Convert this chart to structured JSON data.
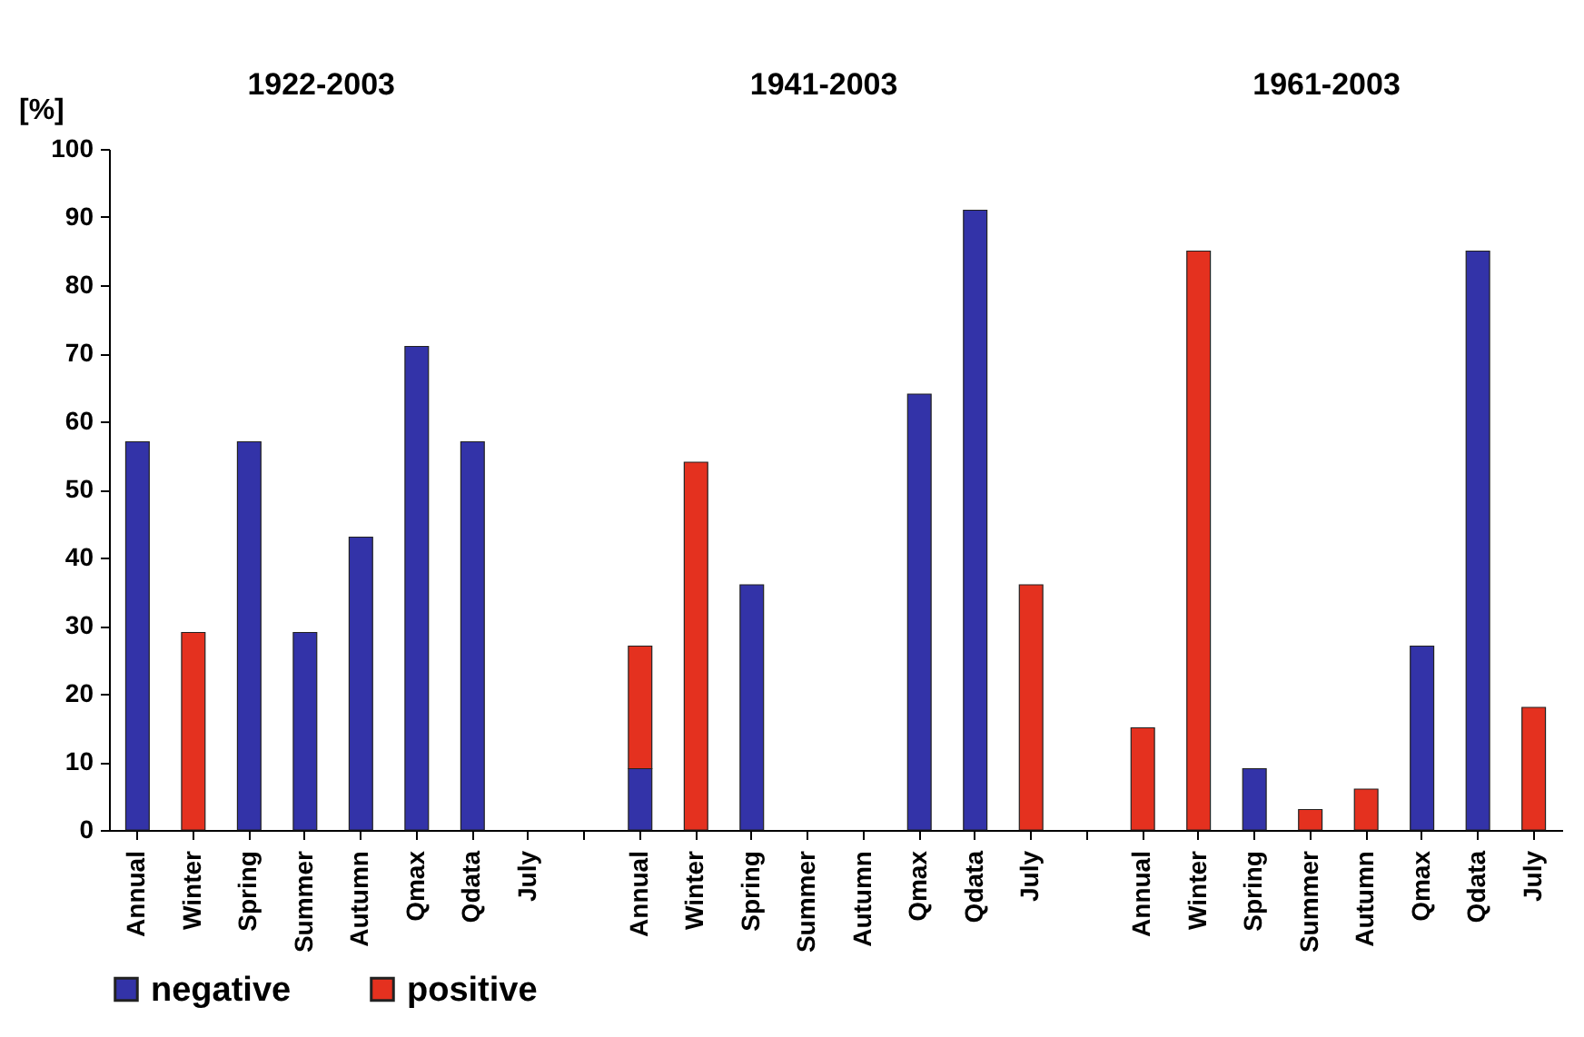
{
  "chart_data": {
    "type": "bar",
    "stacked": true,
    "ylabel": "[%]",
    "annotations": [
      "1922-2003",
      "1941-2003",
      "1961-2003"
    ],
    "categories": [
      "Annual",
      "Winter",
      "Spring",
      "Summer",
      "Autumn",
      "Qmax",
      "Qdata",
      "July",
      null,
      "Annual",
      "Winter",
      "Spring",
      "Summer",
      "Autumn",
      "Qmax",
      "Qdata",
      "July",
      null,
      "Annual",
      "Winter",
      "Spring",
      "Summer",
      "Autumn",
      "Qmax",
      "Qdata",
      "July"
    ],
    "series": [
      {
        "name": "negative",
        "color": "#3333a8",
        "values": [
          57,
          null,
          57,
          29,
          43,
          71,
          57,
          null,
          null,
          9,
          null,
          36,
          null,
          null,
          64,
          91,
          null,
          null,
          null,
          null,
          9,
          null,
          null,
          27,
          85,
          null
        ]
      },
      {
        "name": "positive",
        "color": "#e4311f",
        "values": [
          null,
          29,
          null,
          null,
          null,
          null,
          null,
          null,
          null,
          18,
          54,
          null,
          null,
          null,
          null,
          null,
          36,
          null,
          15,
          85,
          null,
          3,
          6,
          null,
          null,
          18
        ]
      }
    ],
    "ylim": [
      0,
      100
    ],
    "yticks": [
      0,
      10,
      20,
      30,
      40,
      50,
      60,
      70,
      80,
      90,
      100
    ],
    "grid": false,
    "legend": "bottom"
  }
}
